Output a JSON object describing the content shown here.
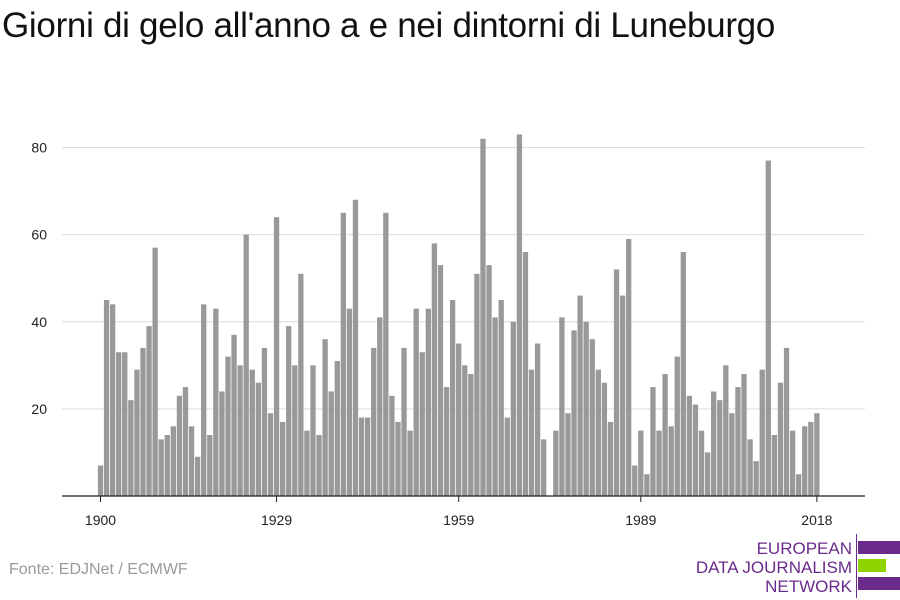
{
  "title": "Giorni di gelo all'anno a e nei dintorni di Luneburgo",
  "source": "Fonte: EDJNet / ECMWF",
  "logo": {
    "line1": "EUROPEAN",
    "line2": "DATA JOURNALISM",
    "line3": "NETWORK",
    "colors": {
      "purple": "#6a2b8c",
      "green": "#8fd400"
    }
  },
  "chart_data": {
    "type": "bar",
    "title": "Giorni di gelo all'anno a e nei dintorni di Luneburgo",
    "xlabel": "",
    "ylabel": "",
    "x_start": 1900,
    "x_end": 2018,
    "xticks": [
      1900,
      1929,
      1959,
      1989,
      2018
    ],
    "yticks": [
      20,
      40,
      60,
      80
    ],
    "ylim": [
      0,
      85
    ],
    "grid": true,
    "bar_color": "#999999",
    "values": [
      7,
      45,
      44,
      33,
      33,
      22,
      29,
      34,
      39,
      57,
      13,
      14,
      16,
      23,
      25,
      16,
      9,
      44,
      14,
      43,
      24,
      32,
      37,
      30,
      60,
      29,
      26,
      34,
      19,
      64,
      17,
      39,
      30,
      51,
      15,
      30,
      14,
      36,
      24,
      31,
      65,
      43,
      68,
      18,
      18,
      34,
      41,
      65,
      23,
      17,
      34,
      15,
      43,
      33,
      43,
      58,
      53,
      25,
      45,
      35,
      30,
      28,
      51,
      82,
      53,
      41,
      45,
      18,
      40,
      83,
      56,
      29,
      35,
      13,
      0,
      15,
      41,
      19,
      38,
      46,
      40,
      36,
      29,
      26,
      17,
      52,
      46,
      59,
      7,
      15,
      5,
      25,
      15,
      28,
      16,
      32,
      56,
      23,
      21,
      15,
      10,
      24,
      22,
      30,
      19,
      25,
      28,
      13,
      8,
      29,
      77,
      14,
      26,
      34,
      15,
      5,
      16,
      17,
      19
    ]
  }
}
